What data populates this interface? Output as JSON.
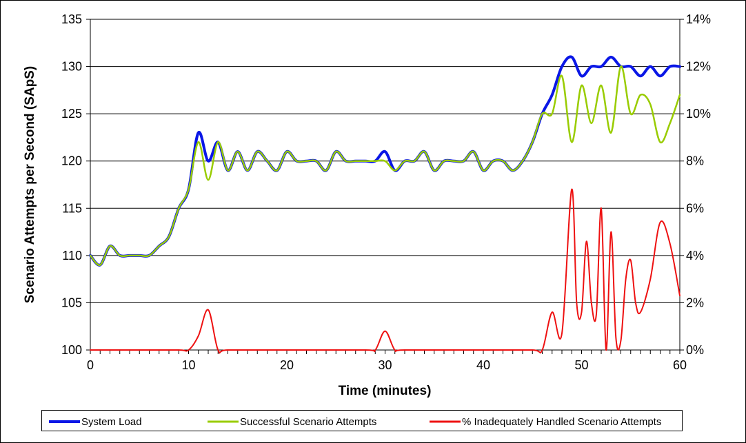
{
  "colors": {
    "system_load": "#0a17e6",
    "successful": "#99cc00",
    "inadequate": "#ee1111",
    "grid": "#000000"
  },
  "chart_data": {
    "type": "line",
    "title": "",
    "xlabel": "Time (minutes)",
    "ylabel": "Scenario Attempts per Second (SApS)",
    "xlim": [
      0,
      60
    ],
    "ylim": [
      100,
      135
    ],
    "y2lim": [
      0,
      14
    ],
    "x_ticks": [
      "0",
      "10",
      "20",
      "30",
      "40",
      "50",
      "60"
    ],
    "y_ticks": [
      "100",
      "105",
      "110",
      "115",
      "120",
      "125",
      "130",
      "135"
    ],
    "y2_ticks": [
      "0%",
      "2%",
      "4%",
      "6%",
      "8%",
      "10%",
      "12%",
      "14%"
    ],
    "grid": "horizontal",
    "legend_position": "bottom",
    "series": [
      {
        "name": "System Load",
        "axis": "left",
        "x": [
          0,
          1,
          2,
          3,
          4,
          5,
          6,
          7,
          8,
          9,
          10,
          11,
          12,
          13,
          14,
          15,
          16,
          17,
          18,
          19,
          20,
          21,
          22,
          23,
          24,
          25,
          26,
          27,
          28,
          29,
          30,
          31,
          32,
          33,
          34,
          35,
          36,
          37,
          38,
          39,
          40,
          41,
          42,
          43,
          44,
          45,
          46,
          47,
          48,
          49,
          50,
          51,
          52,
          53,
          54,
          55,
          56,
          57,
          58,
          59,
          60
        ],
        "values": [
          110,
          109,
          111,
          110,
          110,
          110,
          110,
          111,
          112,
          115,
          117,
          123,
          120,
          122,
          119,
          121,
          119,
          121,
          120,
          119,
          121,
          120,
          120,
          120,
          119,
          121,
          120,
          120,
          120,
          120,
          121,
          119,
          120,
          120,
          121,
          119,
          120,
          120,
          120,
          121,
          119,
          120,
          120,
          119,
          120,
          122,
          125,
          127,
          130,
          131,
          129,
          130,
          130,
          131,
          130,
          130,
          129,
          130,
          129,
          130,
          130
        ]
      },
      {
        "name": "Successful Scenario Attempts",
        "axis": "left",
        "x": [
          0,
          1,
          2,
          3,
          4,
          5,
          6,
          7,
          8,
          9,
          10,
          11,
          12,
          13,
          14,
          15,
          16,
          17,
          18,
          19,
          20,
          21,
          22,
          23,
          24,
          25,
          26,
          27,
          28,
          29,
          30,
          31,
          32,
          33,
          34,
          35,
          36,
          37,
          38,
          39,
          40,
          41,
          42,
          43,
          44,
          45,
          46,
          47,
          48,
          49,
          50,
          51,
          52,
          53,
          54,
          55,
          56,
          57,
          58,
          59,
          60
        ],
        "values": [
          110,
          109,
          111,
          110,
          110,
          110,
          110,
          111,
          112,
          115,
          117,
          122,
          118,
          122,
          119,
          121,
          119,
          121,
          120,
          119,
          121,
          120,
          120,
          120,
          119,
          121,
          120,
          120,
          120,
          120,
          120,
          119,
          120,
          120,
          121,
          119,
          120,
          120,
          120,
          121,
          119,
          120,
          120,
          119,
          120,
          122,
          125,
          125,
          129,
          122,
          128,
          124,
          128,
          123,
          130,
          125,
          127,
          126,
          122,
          124,
          127
        ]
      },
      {
        "name": "% Inadequately Handled Scenario Attempts",
        "axis": "right",
        "unit": "%",
        "x": [
          0,
          5,
          9,
          10,
          11,
          12,
          13,
          14,
          20,
          28,
          29,
          30,
          31,
          32,
          40,
          45,
          46,
          47,
          48,
          49,
          49.5,
          50,
          50.5,
          51,
          51.5,
          52,
          52.5,
          53,
          53.5,
          54,
          54.5,
          55,
          55.5,
          56,
          57,
          58,
          59,
          60
        ],
        "values": [
          0,
          0,
          0,
          0,
          0.6,
          1.7,
          0,
          0,
          0,
          0,
          0,
          0.8,
          0,
          0,
          0,
          0,
          0,
          1.6,
          0.7,
          6.8,
          2,
          1.6,
          4.6,
          2,
          1.5,
          6,
          0,
          5,
          0.5,
          0.4,
          3,
          3.8,
          2,
          1.6,
          3,
          5.4,
          4.5,
          2.3
        ]
      }
    ]
  }
}
